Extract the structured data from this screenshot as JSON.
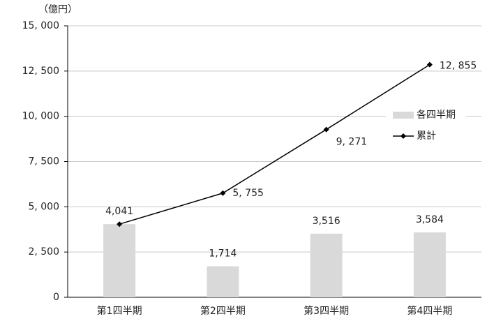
{
  "chart_data": {
    "type": "bar-line",
    "unit_label": "（億円）",
    "categories": [
      "第1四半期",
      "第2四半期",
      "第3四半期",
      "第4四半期"
    ],
    "series": [
      {
        "name": "各四半期",
        "type": "bar",
        "color": "#d9d9d9",
        "values": [
          4041,
          1714,
          3516,
          3584
        ],
        "value_labels": [
          "4,041",
          "1,714",
          "3,516",
          "3,584"
        ]
      },
      {
        "name": "累計",
        "type": "line",
        "color": "#000000",
        "values": [
          4041,
          5755,
          9271,
          12855
        ],
        "value_labels": [
          null,
          "5, 755",
          "9, 271",
          "12, 855"
        ]
      }
    ],
    "ylim": [
      0,
      15000
    ],
    "yticks": [
      0,
      {
        "value": 2500,
        "label": "2, 500"
      },
      {
        "value": 5000,
        "label": "5, 000"
      },
      {
        "value": 7500,
        "label": "7, 500"
      },
      {
        "value": 10000,
        "label": "10, 000"
      },
      {
        "value": 12500,
        "label": "12, 500"
      },
      {
        "value": 15000,
        "label": "15, 000"
      }
    ],
    "grid": true,
    "legend": "right"
  }
}
